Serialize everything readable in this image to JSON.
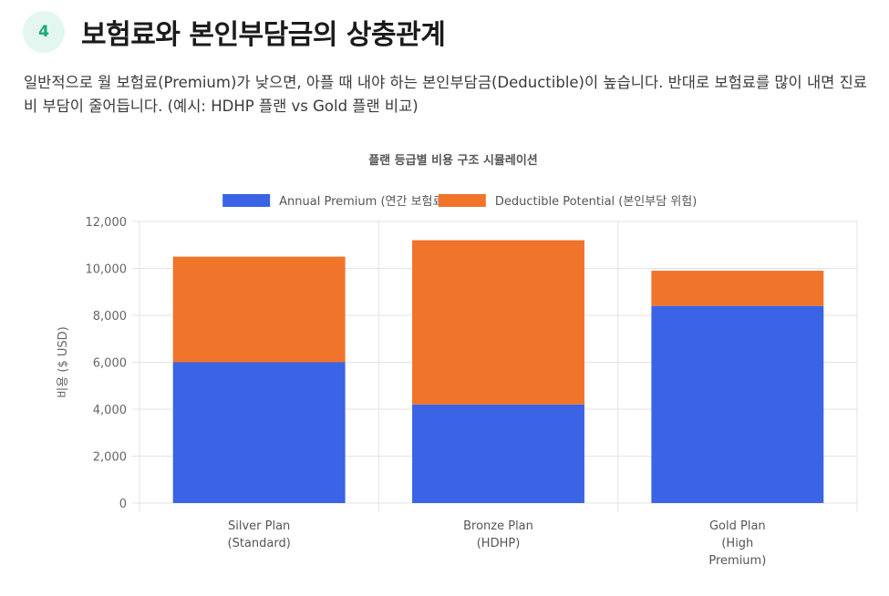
{
  "section": {
    "number": "4",
    "title": "보험료와 본인부담금의 상충관계",
    "description": "일반적으로 월 보험료(Premium)가 낮으면, 아플 때 내야 하는 본인부담금(Deductible)이 높습니다. 반대로 보험료를 많이 내면 진료비 부담이 줄어듭니다. (예시: HDHP 플랜 vs Gold 플랜 비교)"
  },
  "chart_data": {
    "type": "bar",
    "stacked": true,
    "title": "플랜 등급별 비용 구조 시뮬레이션",
    "ylabel": "비용 ($ USD)",
    "xlabel": "",
    "ylim": [
      0,
      12000
    ],
    "yticks": [
      0,
      2000,
      4000,
      6000,
      8000,
      10000,
      12000
    ],
    "ytick_labels": [
      "0",
      "2,000",
      "4,000",
      "6,000",
      "8,000",
      "10,000",
      "12,000"
    ],
    "grid": true,
    "legend_position": "top",
    "categories": [
      [
        "Silver Plan",
        "(Standard)"
      ],
      [
        "Bronze Plan",
        "(HDHP)"
      ],
      [
        "Gold Plan",
        "(High",
        "Premium)"
      ]
    ],
    "series": [
      {
        "name": "Annual Premium (연간 보험료)",
        "color": "#3a63e6",
        "values": [
          6000,
          4200,
          8400
        ]
      },
      {
        "name": "Deductible Potential (본인부담 위험)",
        "color": "#f0742a",
        "values": [
          4500,
          7000,
          1500
        ]
      }
    ]
  }
}
